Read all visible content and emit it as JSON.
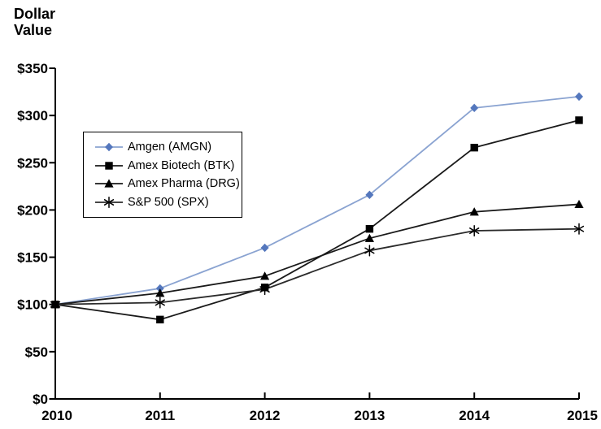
{
  "header": {
    "y_axis_title_lines": [
      "Dollar",
      "Value"
    ]
  },
  "chart_data": {
    "type": "line",
    "title": "",
    "xlabel": "",
    "ylabel": "Dollar Value",
    "categories": [
      "2010",
      "2011",
      "2012",
      "2013",
      "2014",
      "2015"
    ],
    "series": [
      {
        "name": "Amgen (AMGN)",
        "marker": "diamond",
        "line_color": "#8AA3D1",
        "marker_color": "#5477BD",
        "values": [
          100,
          117,
          160,
          216,
          308,
          320
        ]
      },
      {
        "name": "Amex Biotech (BTK)",
        "marker": "square",
        "line_color": "#1a1a1a",
        "marker_color": "#000000",
        "values": [
          100,
          84,
          118,
          180,
          266,
          295
        ]
      },
      {
        "name": "Amex Pharma (DRG)",
        "marker": "triangle",
        "line_color": "#1a1a1a",
        "marker_color": "#000000",
        "values": [
          100,
          112,
          130,
          170,
          198,
          206
        ]
      },
      {
        "name": "S&P 500 (SPX)",
        "marker": "asterisk",
        "line_color": "#2b2b2b",
        "marker_color": "#000000",
        "values": [
          100,
          102,
          116,
          157,
          178,
          180
        ]
      }
    ],
    "ylim": [
      0,
      350
    ],
    "y_tick_step": 50,
    "y_tick_labels": [
      "$0",
      "$50",
      "$100",
      "$150",
      "$200",
      "$250",
      "$300",
      "$350"
    ],
    "grid": false,
    "legend_position": "inside-upper-left",
    "axis_color": "#000000",
    "background_color": "#FFFFFF"
  }
}
